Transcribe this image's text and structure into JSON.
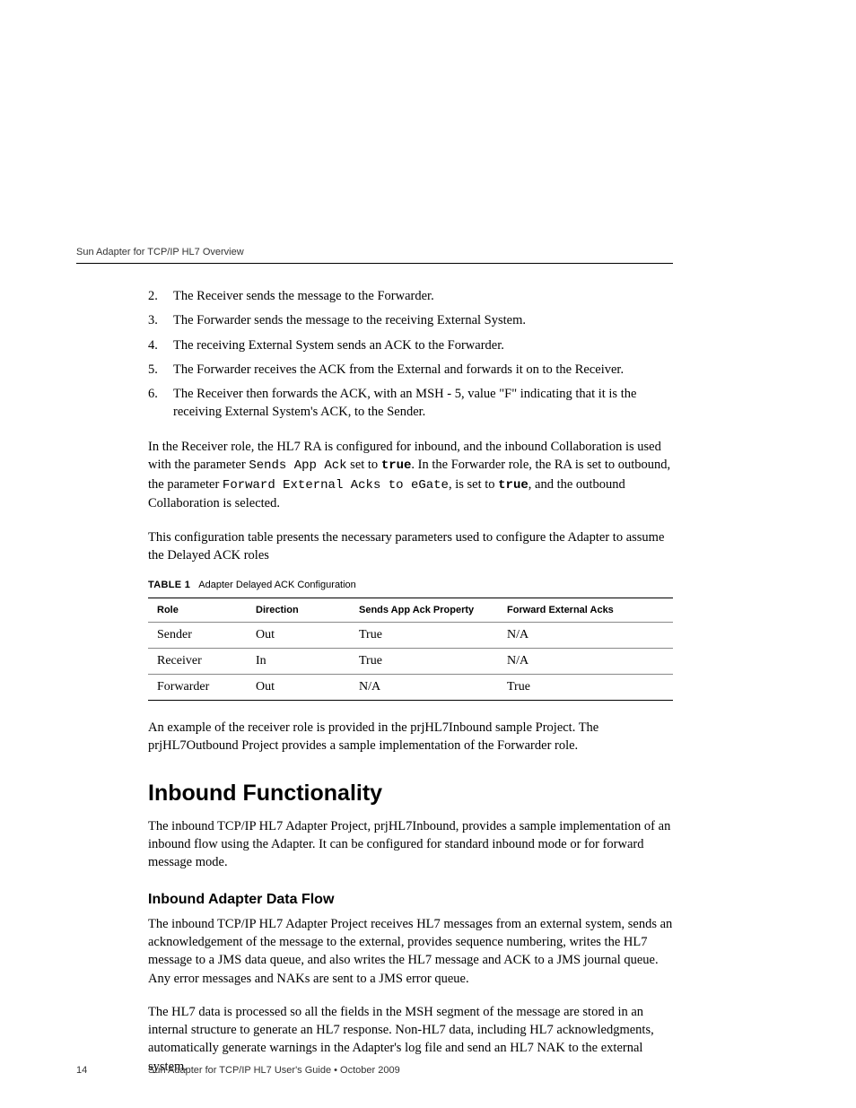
{
  "header": {
    "title": "Sun Adapter for TCP/IP HL7 Overview"
  },
  "steps": [
    {
      "n": "2.",
      "text": "The Receiver sends the message to the Forwarder."
    },
    {
      "n": "3.",
      "text": "The Forwarder sends the message to the receiving External System."
    },
    {
      "n": "4.",
      "text": "The receiving External System sends an ACK to the Forwarder."
    },
    {
      "n": "5.",
      "text": "The Forwarder receives the ACK from the External and forwards it on to the Receiver."
    },
    {
      "n": "6.",
      "text": "The Receiver then forwards the ACK, with an MSH - 5, value \"F\" indicating that it is the receiving External System's ACK, to the Sender."
    }
  ],
  "para1": {
    "a": "In the Receiver role, the HL7 RA is configured for inbound, and the inbound Collaboration is used with the parameter ",
    "code1": "Sends App Ack",
    "b": " set to ",
    "bold1": "true",
    "c": ". In the Forwarder role, the RA is set to outbound, the parameter ",
    "code2": "Forward External Acks to eGate",
    "d": ", is set to ",
    "bold2": "true",
    "e": ", and the outbound Collaboration is selected."
  },
  "para2": "This configuration table presents the necessary parameters used to configure the Adapter to assume the Delayed ACK roles",
  "table": {
    "label": "TABLE 1",
    "caption": "Adapter Delayed ACK Configuration",
    "columns": [
      "Role",
      "Direction",
      "Sends App Ack Property",
      "Forward External Acks"
    ],
    "rows": [
      [
        "Sender",
        "Out",
        "True",
        "N/A"
      ],
      [
        "Receiver",
        "In",
        "True",
        "N/A"
      ],
      [
        "Forwarder",
        "Out",
        "N/A",
        "True"
      ]
    ],
    "col_widths": [
      "110px",
      "115px",
      "165px",
      "auto"
    ]
  },
  "para3": "An example of the receiver role is provided in the prjHL7Inbound sample Project. The prjHL7Outbound Project provides a sample implementation of the Forwarder role.",
  "heading1": "Inbound Functionality",
  "para4": "The inbound TCP/IP HL7 Adapter Project, prjHL7Inbound, provides a sample implementation of an inbound flow using the Adapter. It can be configured for standard inbound mode or for forward message mode.",
  "heading2": "Inbound Adapter Data Flow",
  "para5": "The inbound TCP/IP HL7 Adapter Project receives HL7 messages from an external system, sends an acknowledgement of the message to the external, provides sequence numbering, writes the HL7 message to a JMS data queue, and also writes the HL7 message and ACK to a JMS journal queue. Any error messages and NAKs are sent to a JMS error queue.",
  "para6": "The HL7 data is processed so all the fields in the MSH segment of the message are stored in an internal structure to generate an HL7 response. Non-HL7 data, including HL7 acknowledgments, automatically generate warnings in the Adapter's log file and send an HL7 NAK to the external system.",
  "footer": {
    "page": "14",
    "text": "Sun Adapter for TCP/IP HL7 User's Guide  •  October 2009"
  }
}
